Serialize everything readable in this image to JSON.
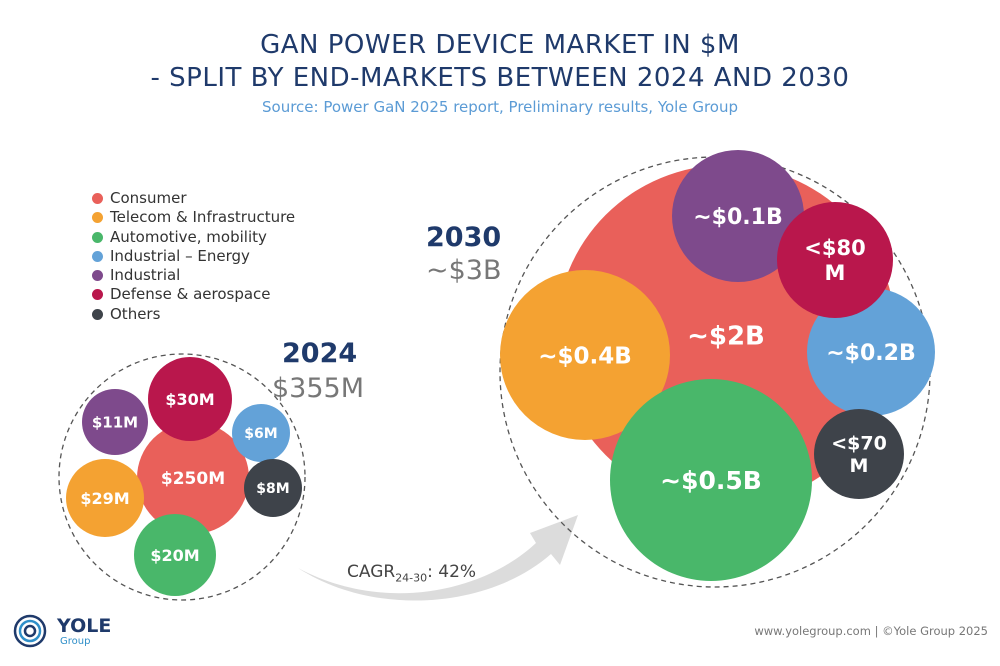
{
  "header": {
    "title_line1": "GAN POWER DEVICE MARKET IN $M",
    "title_line2": "- SPLIT BY END-MARKETS BETWEEN 2024 AND 2030",
    "source": "Source: Power GaN 2025 report, Preliminary results, Yole Group"
  },
  "legend": [
    {
      "label": "Consumer",
      "color": "#e9605a"
    },
    {
      "label": "Telecom & Infrastructure",
      "color": "#f4a232"
    },
    {
      "label": "Automotive, mobility",
      "color": "#49b76a"
    },
    {
      "label": "Industrial – Energy",
      "color": "#63a2d8"
    },
    {
      "label": "Industrial",
      "color": "#7e4a8c"
    },
    {
      "label": "Defense & aerospace",
      "color": "#b9174c"
    },
    {
      "label": "Others",
      "color": "#3e434a"
    }
  ],
  "chart_data": {
    "type": "bubble",
    "series": [
      {
        "name": "2024",
        "total_label": "$355M",
        "categories": [
          "Consumer",
          "Telecom & Infrastructure",
          "Automotive, mobility",
          "Industrial – Energy",
          "Industrial",
          "Defense & aerospace",
          "Others"
        ],
        "values_musd": [
          250,
          29,
          20,
          6,
          11,
          30,
          8
        ],
        "labels": [
          "$250M",
          "$29M",
          "$20M",
          "$6M",
          "$11M",
          "$30M",
          "$8M"
        ]
      },
      {
        "name": "2030",
        "total_label": "~$3B",
        "categories": [
          "Consumer",
          "Telecom & Infrastructure",
          "Automotive, mobility",
          "Industrial – Energy",
          "Industrial",
          "Defense & aerospace",
          "Others"
        ],
        "labels": [
          "~$2B",
          "~$0.4B",
          "~$0.5B",
          "~$0.2B",
          "~$0.1B",
          "<$80 M",
          "<$70 M"
        ]
      }
    ],
    "cagr": {
      "label": "CAGR",
      "sub": "24-30",
      "value": ": 42%"
    }
  },
  "footer": {
    "text": "www.yolegroup.com | ©Yole Group 2025",
    "logo_name": "YOLE",
    "logo_sub": "Group"
  }
}
